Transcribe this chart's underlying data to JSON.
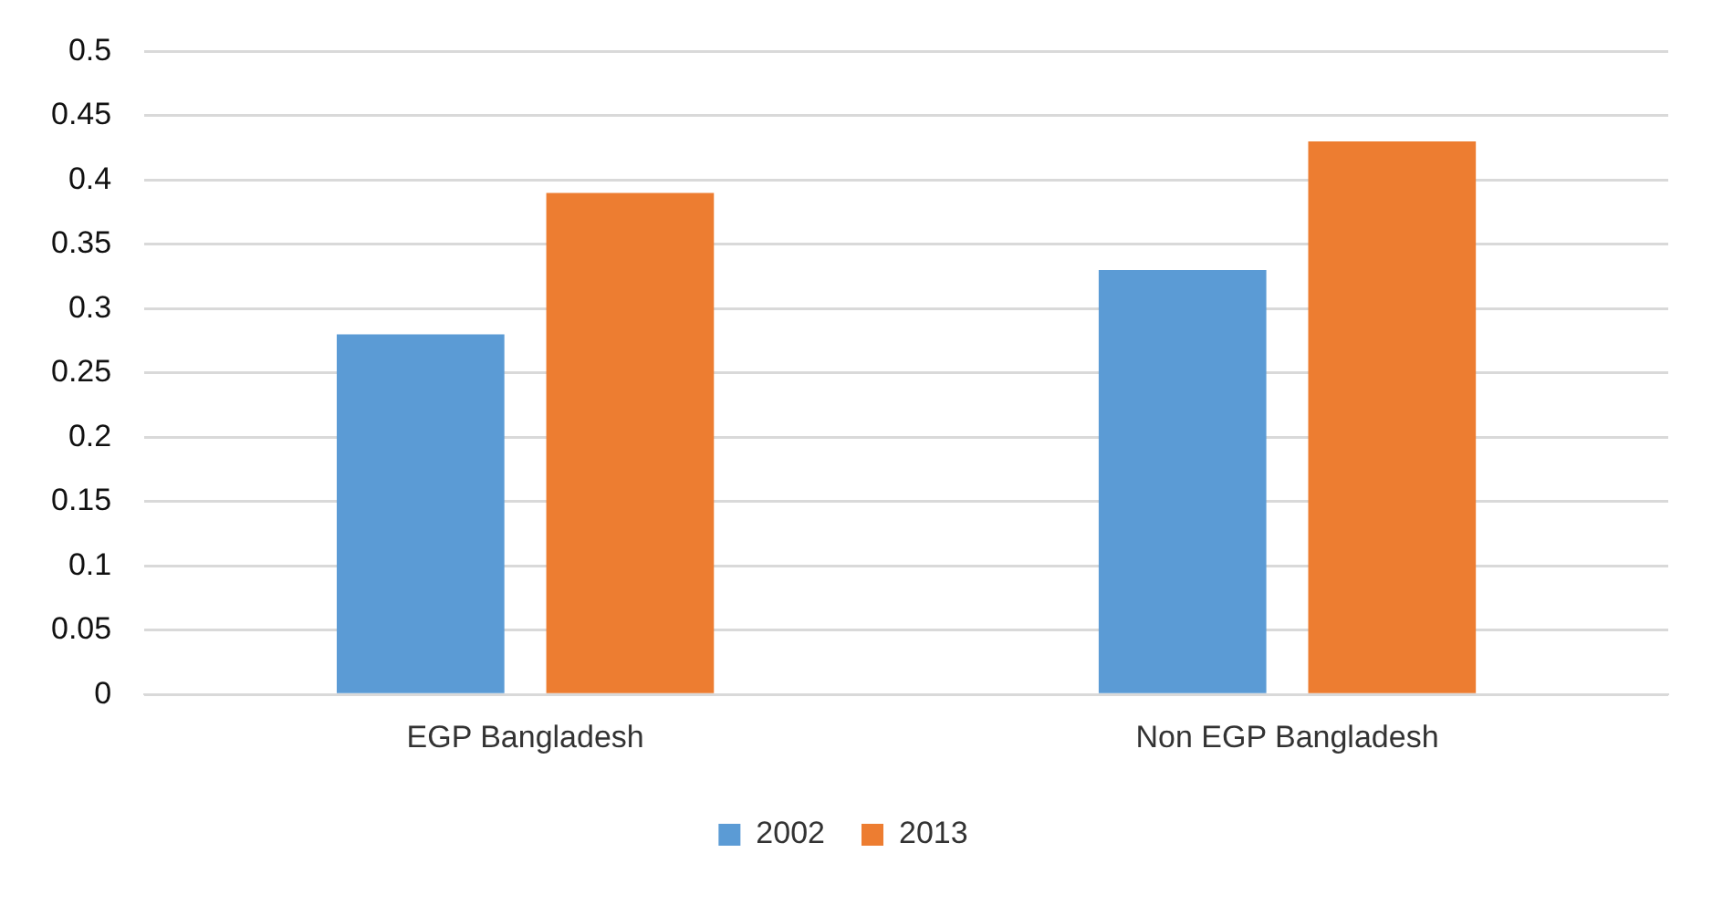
{
  "chart_data": {
    "type": "bar",
    "categories": [
      "EGP Bangladesh",
      "Non EGP Bangladesh"
    ],
    "series": [
      {
        "name": "2002",
        "color": "#5b9bd5",
        "values": [
          0.28,
          0.33
        ]
      },
      {
        "name": "2013",
        "color": "#ed7d31",
        "values": [
          0.39,
          0.43
        ]
      }
    ],
    "ylim": [
      0,
      0.5
    ],
    "yticks": [
      0,
      0.05,
      0.1,
      0.15,
      0.2,
      0.25,
      0.3,
      0.35,
      0.4,
      0.45,
      0.5
    ],
    "grid": "y",
    "legend": "bottom"
  }
}
